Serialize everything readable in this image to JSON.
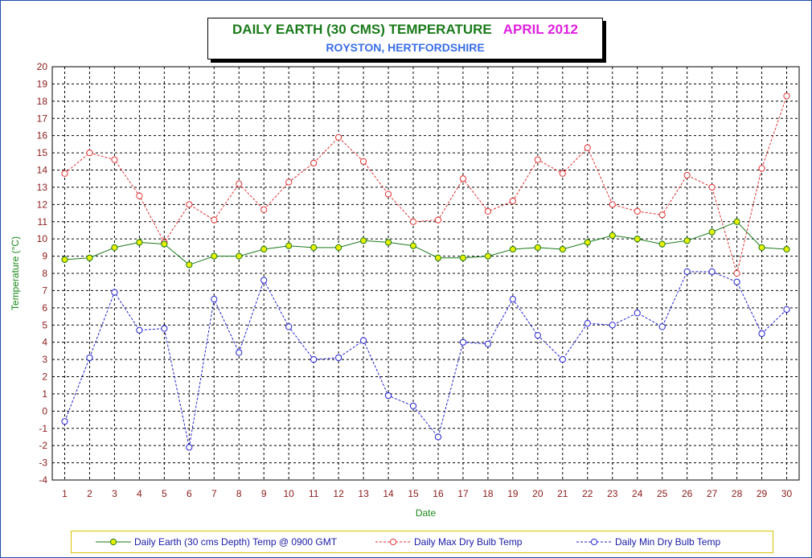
{
  "chart_data": {
    "type": "line",
    "title": "DAILY EARTH (30 CMS) TEMPERATURE",
    "title_month": "APRIL 2012",
    "subtitle": "ROYSTON, HERTFORDSHIRE",
    "xlabel": "Date",
    "ylabel": "Temperature (°C)",
    "ylim": [
      -4,
      20
    ],
    "yticks": [
      -4,
      -3,
      -2,
      -1,
      0,
      1,
      2,
      3,
      4,
      5,
      6,
      7,
      8,
      9,
      10,
      11,
      12,
      13,
      14,
      15,
      16,
      17,
      18,
      19,
      20
    ],
    "x": [
      1,
      2,
      3,
      4,
      5,
      6,
      7,
      8,
      9,
      10,
      11,
      12,
      13,
      14,
      15,
      16,
      17,
      18,
      19,
      20,
      21,
      22,
      23,
      24,
      25,
      26,
      27,
      28,
      29,
      30
    ],
    "grid": true,
    "legend_position": "bottom",
    "series": [
      {
        "name": "Daily Earth (30 cms Depth) Temp @ 0900 GMT",
        "color": "#1a7a1a",
        "marker_color": "#e8f000",
        "style": "solid",
        "values": [
          8.8,
          8.9,
          9.5,
          9.8,
          9.7,
          8.5,
          9.0,
          9.0,
          9.4,
          9.6,
          9.5,
          9.5,
          9.9,
          9.8,
          9.6,
          8.9,
          8.9,
          9.0,
          9.4,
          9.5,
          9.4,
          9.8,
          10.2,
          10.0,
          9.7,
          9.9,
          10.4,
          11.0,
          9.5,
          9.4
        ]
      },
      {
        "name": "Daily Max Dry Bulb Temp",
        "color": "#e03030",
        "marker_color": "#ffffff",
        "style": "dashed",
        "values": [
          13.8,
          15.0,
          14.6,
          12.5,
          9.8,
          12.0,
          11.1,
          13.2,
          11.7,
          13.3,
          14.4,
          15.9,
          14.5,
          12.6,
          11.0,
          11.1,
          13.5,
          11.6,
          12.2,
          14.6,
          13.8,
          15.3,
          12.0,
          11.6,
          11.4,
          13.7,
          13.0,
          8.0,
          14.1,
          18.3
        ]
      },
      {
        "name": "Daily Min Dry Bulb Temp",
        "color": "#2020d0",
        "marker_color": "#ffffff",
        "style": "dashed",
        "values": [
          -0.6,
          3.1,
          6.9,
          4.7,
          4.8,
          -2.1,
          6.5,
          3.4,
          7.6,
          4.9,
          3.0,
          3.1,
          4.1,
          0.9,
          0.3,
          -1.5,
          4.0,
          3.9,
          6.5,
          4.4,
          3.0,
          5.1,
          5.0,
          5.7,
          4.9,
          8.1,
          8.1,
          7.5,
          4.5,
          5.9
        ]
      }
    ]
  }
}
